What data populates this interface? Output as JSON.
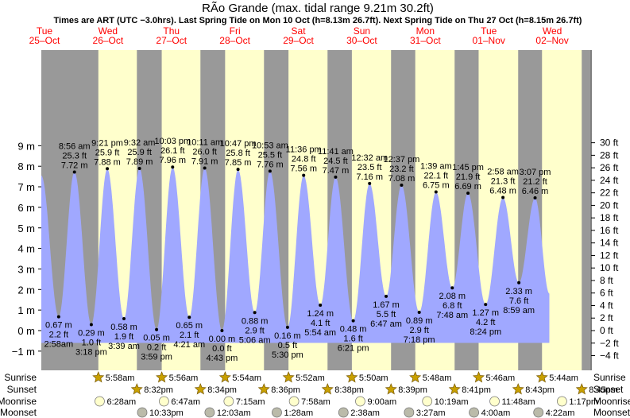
{
  "header": {
    "title": "RÃ­o Grande (max. tidal range 9.21m 30.2ft)",
    "subtitle": "Times are ART (UTC −3.0hrs). Last Spring Tide on Mon 10 Oct (h=8.13m 26.7ft). Next Spring Tide on Thu 27 Oct (h=8.15m 26.7ft)"
  },
  "colors": {
    "night": "#999999",
    "day": "#ffffcc",
    "tide_fill": "#a0a8ff",
    "label_red": "#ff0000",
    "sun_fill": "#c8a000",
    "moonrise_fill": "#ffffcc",
    "moonset_fill": "#bbbbaa"
  },
  "chart_data": {
    "type": "area",
    "title": "RÃ­o Grande (max. tidal range 9.21m 30.2ft)",
    "ylabel_left": "m",
    "ylabel_right": "ft",
    "ylim_m": [
      -1.35,
      9.75
    ],
    "y_ticks_m": [
      "9 m",
      "8 m",
      "7 m",
      "6 m",
      "5 m",
      "4 m",
      "3 m",
      "2 m",
      "1 m",
      "0 m",
      "−1 m"
    ],
    "y_ticks_m_values": [
      9,
      8,
      7,
      6,
      5,
      4,
      3,
      2,
      1,
      0,
      -1
    ],
    "y_ticks_ft": [
      "30 ft",
      "28 ft",
      "26 ft",
      "24 ft",
      "22 ft",
      "20 ft",
      "18 ft",
      "16 ft",
      "14 ft",
      "12 ft",
      "10 ft",
      "8 ft",
      "6 ft",
      "4 ft",
      "2 ft",
      "0 ft",
      "−2 ft",
      "−4 ft"
    ],
    "y_ticks_ft_values": [
      30,
      28,
      26,
      24,
      22,
      20,
      18,
      16,
      14,
      12,
      10,
      8,
      6,
      4,
      2,
      0,
      -2,
      -4
    ],
    "days": [
      {
        "dow": "Tue",
        "date": "25–Oct"
      },
      {
        "dow": "Wed",
        "date": "26–Oct"
      },
      {
        "dow": "Thu",
        "date": "27–Oct"
      },
      {
        "dow": "Fri",
        "date": "28–Oct"
      },
      {
        "dow": "Sat",
        "date": "29–Oct"
      },
      {
        "dow": "Sun",
        "date": "30–Oct"
      },
      {
        "dow": "Mon",
        "date": "31–Oct"
      },
      {
        "dow": "Tue",
        "date": "01–Nov"
      },
      {
        "dow": "Wed",
        "date": "02–Nov"
      }
    ],
    "x_start": "2022-10-25 08:24",
    "x_end": "2022-11-02 23:59",
    "daylight": [
      {
        "rise": "2022-10-26 05:58",
        "set": "2022-10-26 20:32"
      },
      {
        "rise": "2022-10-27 05:56",
        "set": "2022-10-27 20:34"
      },
      {
        "rise": "2022-10-28 05:54",
        "set": "2022-10-28 20:36"
      },
      {
        "rise": "2022-10-29 05:52",
        "set": "2022-10-29 20:38"
      },
      {
        "rise": "2022-10-30 05:50",
        "set": "2022-10-30 20:39"
      },
      {
        "rise": "2022-10-31 05:48",
        "set": "2022-10-31 20:41"
      },
      {
        "rise": "2022-11-01 05:46",
        "set": "2022-11-01 20:43"
      },
      {
        "rise": "2022-11-02 05:44",
        "set": "2022-11-02 20:45"
      }
    ],
    "tide_start": {
      "time": "2022-10-25 08:24",
      "h": 7.55
    },
    "tides": [
      {
        "type": "low",
        "time": "2022-10-25 14:58",
        "label": "2:58am",
        "m": 0.67,
        "m_label": "0.67 m",
        "ft_label": "2.2 ft"
      },
      {
        "type": "high",
        "time": "2022-10-25 20:56",
        "label": "8:56 am",
        "m": 7.72,
        "m_label": "7.72 m",
        "ft_label": "25.3 ft"
      },
      {
        "type": "low",
        "time": "2022-10-26 03:18",
        "label": "3:18 pm",
        "m": 0.29,
        "m_label": "0.29 m",
        "ft_label": "1.0 ft"
      },
      {
        "type": "high",
        "time": "2022-10-26 09:21",
        "label": "9:21 pm",
        "m": 7.88,
        "m_label": "7.88 m",
        "ft_label": "25.9 ft"
      },
      {
        "type": "low",
        "time": "2022-10-26 15:39",
        "label": "3:39 am",
        "m": 0.58,
        "m_label": "0.58 m",
        "ft_label": "1.9 ft"
      },
      {
        "type": "high",
        "time": "2022-10-26 21:32",
        "label": "9:32 am",
        "m": 7.89,
        "m_label": "7.89 m",
        "ft_label": "25.9 ft"
      },
      {
        "type": "low",
        "time": "2022-10-27 03:59",
        "label": "3:59 pm",
        "m": 0.05,
        "m_label": "0.05 m",
        "ft_label": "0.2 ft"
      },
      {
        "type": "high",
        "time": "2022-10-27 10:03",
        "label": "10:03 pm",
        "m": 7.96,
        "m_label": "7.96 m",
        "ft_label": "26.1 ft"
      },
      {
        "type": "low",
        "time": "2022-10-27 16:21",
        "label": "4:21 am",
        "m": 0.65,
        "m_label": "0.65 m",
        "ft_label": "2.1 ft"
      },
      {
        "type": "high",
        "time": "2022-10-27 22:11",
        "label": "10:11 am",
        "m": 7.91,
        "m_label": "7.91 m",
        "ft_label": "26.0 ft"
      },
      {
        "type": "low",
        "time": "2022-10-28 04:43",
        "label": "4:43 pm",
        "m": 0.0,
        "m_label": "0.00 m",
        "ft_label": "0.0 ft"
      },
      {
        "type": "high",
        "time": "2022-10-28 10:47",
        "label": "10:47 pm",
        "m": 7.85,
        "m_label": "7.85 m",
        "ft_label": "25.8 ft"
      },
      {
        "type": "low",
        "time": "2022-10-28 17:06",
        "label": "5:06 am",
        "m": 0.88,
        "m_label": "0.88 m",
        "ft_label": "2.9 ft"
      },
      {
        "type": "high",
        "time": "2022-10-28 22:53",
        "label": "10:53 am",
        "m": 7.76,
        "m_label": "7.76 m",
        "ft_label": "25.5 ft"
      },
      {
        "type": "low",
        "time": "2022-10-29 05:30",
        "label": "5:30 pm",
        "m": 0.16,
        "m_label": "0.16 m",
        "ft_label": "0.5 ft"
      },
      {
        "type": "high",
        "time": "2022-10-29 11:36",
        "label": "11:36 pm",
        "m": 7.56,
        "m_label": "7.56 m",
        "ft_label": "24.8 ft"
      },
      {
        "type": "low",
        "time": "2022-10-29 17:54",
        "label": "5:54 am",
        "m": 1.24,
        "m_label": "1.24 m",
        "ft_label": "4.1 ft"
      },
      {
        "type": "high",
        "time": "2022-10-29 23:41",
        "label": "11:41 am",
        "m": 7.47,
        "m_label": "7.47 m",
        "ft_label": "24.5 ft"
      },
      {
        "type": "low",
        "time": "2022-10-30 06:21",
        "label": "6:21 pm",
        "m": 0.48,
        "m_label": "0.48 m",
        "ft_label": "1.6 ft"
      },
      {
        "type": "high",
        "time": "2022-10-30 12:32",
        "label": "12:32 am",
        "m": 7.16,
        "m_label": "7.16 m",
        "ft_label": "23.5 ft"
      },
      {
        "type": "low",
        "time": "2022-10-30 18:47",
        "label": "6:47 am",
        "m": 1.67,
        "m_label": "1.67 m",
        "ft_label": "5.5 ft"
      },
      {
        "type": "high",
        "time": "2022-10-31 00:37",
        "label": "12:37 pm",
        "m": 7.08,
        "m_label": "7.08 m",
        "ft_label": "23.2 ft"
      },
      {
        "type": "low",
        "time": "2022-10-31 07:18",
        "label": "7:18 pm",
        "m": 0.89,
        "m_label": "0.89 m",
        "ft_label": "2.9 ft"
      },
      {
        "type": "high",
        "time": "2022-10-31 13:39",
        "label": "1:39 am",
        "m": 6.75,
        "m_label": "6.75 m",
        "ft_label": "22.1 ft"
      },
      {
        "type": "low",
        "time": "2022-10-31 19:48",
        "label": "7:48 am",
        "m": 2.08,
        "m_label": "2.08 m",
        "ft_label": "6.8 ft"
      },
      {
        "type": "high",
        "time": "2022-11-01 01:45",
        "label": "1:45 pm",
        "m": 6.69,
        "m_label": "6.69 m",
        "ft_label": "21.9 ft"
      },
      {
        "type": "low",
        "time": "2022-11-01 08:24",
        "label": "8:24 pm",
        "m": 1.27,
        "m_label": "1.27 m",
        "ft_label": "4.2 ft"
      },
      {
        "type": "high",
        "time": "2022-11-01 14:58",
        "label": "2:58 am",
        "m": 6.48,
        "m_label": "6.48 m",
        "ft_label": "21.3 ft"
      },
      {
        "type": "low",
        "time": "2022-11-01 20:59",
        "label": "8:59 am",
        "m": 2.33,
        "m_label": "2.33 m",
        "ft_label": "7.6 ft"
      },
      {
        "type": "high",
        "time": "2022-11-02 03:07",
        "label": "3:07 pm",
        "m": 6.46,
        "m_label": "6.46 m",
        "ft_label": "21.2 ft"
      }
    ],
    "tide_end": {
      "time": "2022-11-02 08:30",
      "h": 1.8
    },
    "grid": false
  },
  "ephemeris": {
    "row_labels": {
      "sunrise": "Sunrise",
      "sunset": "Sunset",
      "moonrise": "Moonrise",
      "moonset": "Moonset"
    },
    "sunrise": [
      {
        "time": "2022-10-26 05:58",
        "label": "5:58am"
      },
      {
        "time": "2022-10-27 05:56",
        "label": "5:56am"
      },
      {
        "time": "2022-10-28 05:54",
        "label": "5:54am"
      },
      {
        "time": "2022-10-29 05:52",
        "label": "5:52am"
      },
      {
        "time": "2022-10-30 05:50",
        "label": "5:50am"
      },
      {
        "time": "2022-10-31 05:48",
        "label": "5:48am"
      },
      {
        "time": "2022-11-01 05:46",
        "label": "5:46am"
      },
      {
        "time": "2022-11-02 05:44",
        "label": "5:44am"
      }
    ],
    "sunset": [
      {
        "time": "2022-10-26 20:32",
        "label": "8:32pm"
      },
      {
        "time": "2022-10-27 20:34",
        "label": "8:34pm"
      },
      {
        "time": "2022-10-28 20:36",
        "label": "8:36pm"
      },
      {
        "time": "2022-10-29 20:38",
        "label": "8:38pm"
      },
      {
        "time": "2022-10-30 20:39",
        "label": "8:39pm"
      },
      {
        "time": "2022-10-31 20:41",
        "label": "8:41pm"
      },
      {
        "time": "2022-11-01 20:43",
        "label": "8:43pm"
      },
      {
        "time": "2022-11-02 20:45",
        "label": "8:45pm"
      }
    ],
    "moonrise": [
      {
        "time": "2022-10-26 06:28",
        "label": "6:28am"
      },
      {
        "time": "2022-10-27 06:47",
        "label": "6:47am"
      },
      {
        "time": "2022-10-28 07:15",
        "label": "7:15am"
      },
      {
        "time": "2022-10-29 07:58",
        "label": "7:58am"
      },
      {
        "time": "2022-10-30 09:00",
        "label": "9:00am"
      },
      {
        "time": "2022-10-31 10:19",
        "label": "10:19am"
      },
      {
        "time": "2022-11-01 11:48",
        "label": "11:48am"
      },
      {
        "time": "2022-11-02 13:17",
        "label": "1:17pm"
      }
    ],
    "moonset": [
      {
        "time": "2022-10-26 22:33",
        "label": "10:33pm"
      },
      {
        "time": "2022-10-28 00:03",
        "label": "12:03am"
      },
      {
        "time": "2022-10-29 01:28",
        "label": "1:28am"
      },
      {
        "time": "2022-10-30 02:38",
        "label": "2:38am"
      },
      {
        "time": "2022-10-31 03:27",
        "label": "3:27am"
      },
      {
        "time": "2022-11-01 04:00",
        "label": "4:00am"
      },
      {
        "time": "2022-11-02 04:22",
        "label": "4:22am"
      }
    ]
  }
}
